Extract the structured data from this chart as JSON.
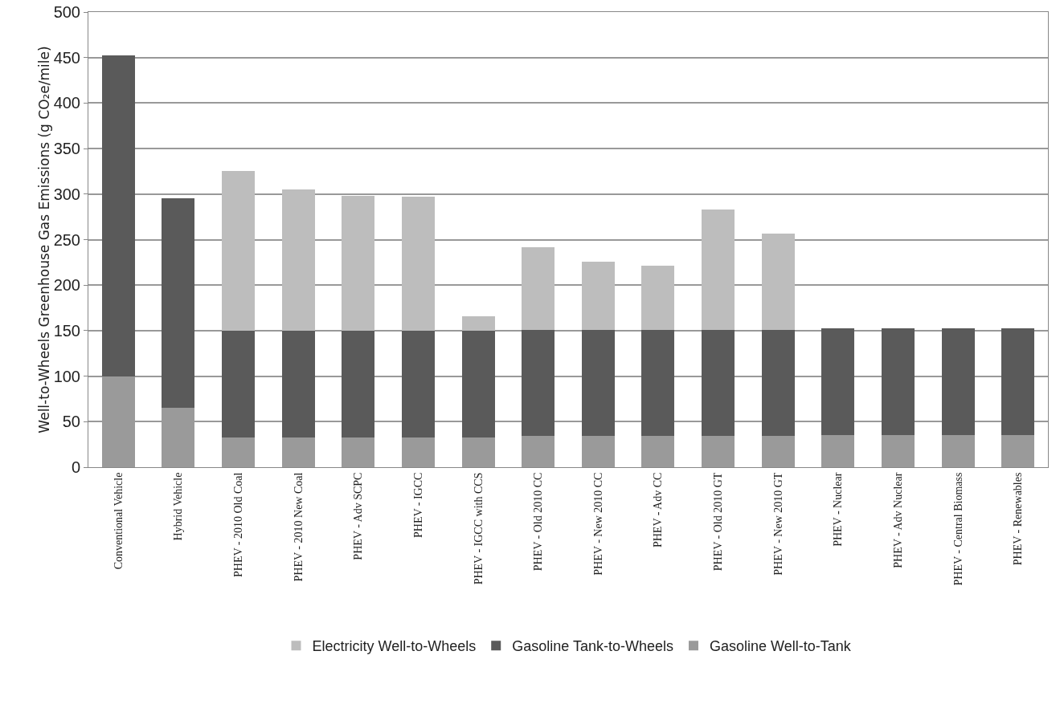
{
  "chart_data": {
    "type": "bar",
    "stacked": true,
    "ylabel": "Well-to-Wheels Greenhouse Gas Emissions (g CO₂e/mile)",
    "categories": [
      "Conventional Vehicle",
      "Hybrid Vehicle",
      "PHEV - 2010 Old Coal",
      "PHEV - 2010 New Coal",
      "PHEV - Adv SCPC",
      "PHEV - IGCC",
      "PHEV - IGCC with CCS",
      "PHEV - Old 2010 CC",
      "PHEV - New 2010 CC",
      "PHEV - Adv CC",
      "PHEV - Old 2010 GT",
      "PHEV - New 2010 GT",
      "PHEV - Nuclear",
      "PHEV - Adv Nuclear",
      "PHEV - Central Biomass",
      "PHEV - Renewables"
    ],
    "series": [
      {
        "name": "Gasoline Well-to-Tank",
        "color": "#9a9a9a",
        "values": [
          100,
          65,
          33,
          33,
          33,
          33,
          33,
          34,
          34,
          34,
          34,
          34,
          35,
          35,
          35,
          35
        ]
      },
      {
        "name": "Gasoline Tank-to-Wheels",
        "color": "#5a5a5a",
        "values": [
          352,
          230,
          117,
          117,
          117,
          117,
          117,
          117,
          117,
          117,
          117,
          117,
          118,
          118,
          118,
          118
        ]
      },
      {
        "name": "Electricity Well-to-Wheels",
        "color": "#bdbdbd",
        "values": [
          0,
          0,
          175,
          155,
          148,
          147,
          16,
          91,
          75,
          70,
          132,
          106,
          0,
          0,
          0,
          0
        ]
      }
    ],
    "ylim": [
      0,
      500
    ],
    "yticks": [
      0,
      50,
      100,
      150,
      200,
      250,
      300,
      350,
      400,
      450,
      500
    ],
    "grid": "y",
    "legend": "bottom"
  }
}
